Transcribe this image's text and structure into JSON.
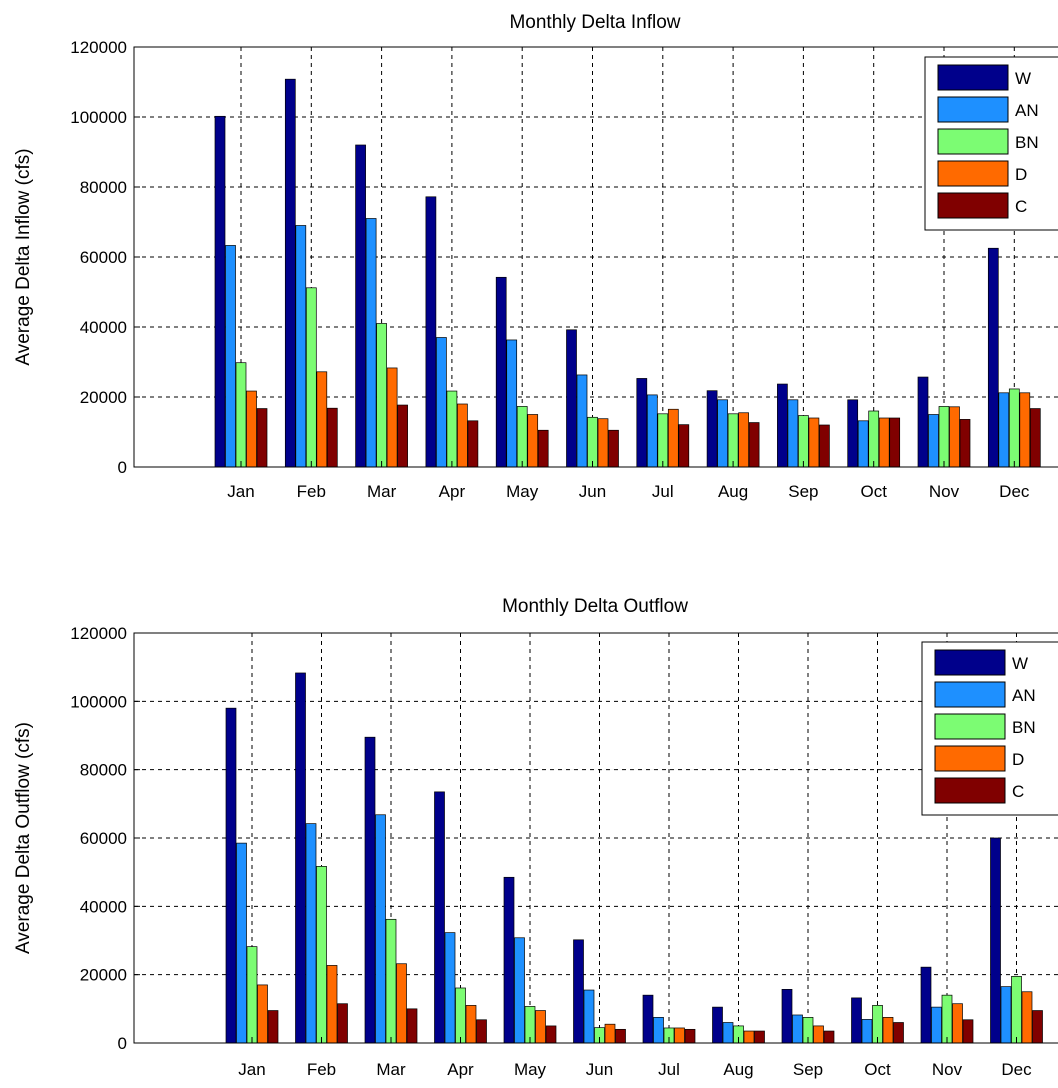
{
  "chart_data": [
    {
      "type": "bar",
      "title": "Monthly Delta Inflow",
      "xlabel": "",
      "ylabel": "Average Delta Inflow (cfs)",
      "ylim": [
        0,
        120000
      ],
      "yticks": [
        0,
        20000,
        40000,
        60000,
        80000,
        100000,
        120000
      ],
      "ytick_labels": [
        "0",
        "20000",
        "40000",
        "60000",
        "80000",
        "100000",
        "120000"
      ],
      "grid": true,
      "legend_position": "top-right",
      "categories": [
        "Jan",
        "Feb",
        "Mar",
        "Apr",
        "May",
        "Jun",
        "Jul",
        "Aug",
        "Sep",
        "Oct",
        "Nov",
        "Dec"
      ],
      "series": [
        {
          "name": "W",
          "color": "#00008B",
          "values": [
            100200,
            110800,
            92000,
            77200,
            54200,
            39200,
            25300,
            21800,
            23700,
            19200,
            25700,
            62500
          ]
        },
        {
          "name": "AN",
          "color": "#1E90FF",
          "values": [
            63300,
            69000,
            71000,
            37000,
            36300,
            26300,
            20600,
            19200,
            19200,
            13200,
            15000,
            21200
          ]
        },
        {
          "name": "BN",
          "color": "#7CFC73",
          "values": [
            29800,
            51200,
            41000,
            21700,
            17300,
            14200,
            15200,
            15200,
            14700,
            16000,
            17300,
            22300
          ]
        },
        {
          "name": "D",
          "color": "#FF6A00",
          "values": [
            21700,
            27200,
            28300,
            18000,
            15000,
            13800,
            16500,
            15500,
            14000,
            14000,
            17200,
            21200
          ]
        },
        {
          "name": "C",
          "color": "#800000",
          "values": [
            16700,
            16800,
            17700,
            13200,
            10500,
            10500,
            12100,
            12700,
            12000,
            14000,
            13600,
            16700
          ]
        }
      ]
    },
    {
      "type": "bar",
      "title": "Monthly Delta Outflow",
      "xlabel": "",
      "ylabel": "Average Delta Outflow (cfs)",
      "ylim": [
        0,
        120000
      ],
      "yticks": [
        0,
        20000,
        40000,
        60000,
        80000,
        100000,
        120000
      ],
      "ytick_labels": [
        "0",
        "20000",
        "40000",
        "60000",
        "80000",
        "100000",
        "120000"
      ],
      "grid": true,
      "legend_position": "top-right",
      "categories": [
        "Jan",
        "Feb",
        "Mar",
        "Apr",
        "May",
        "Jun",
        "Jul",
        "Aug",
        "Sep",
        "Oct",
        "Nov",
        "Dec"
      ],
      "series": [
        {
          "name": "W",
          "color": "#00008B",
          "values": [
            98000,
            108300,
            89500,
            73500,
            48500,
            30200,
            14000,
            10500,
            15700,
            13200,
            22200,
            60000
          ]
        },
        {
          "name": "AN",
          "color": "#1E90FF",
          "values": [
            58500,
            64200,
            66800,
            32300,
            30800,
            15500,
            7500,
            6000,
            8200,
            6900,
            10500,
            16500
          ]
        },
        {
          "name": "BN",
          "color": "#7CFC73",
          "values": [
            28200,
            51700,
            36200,
            16100,
            10700,
            4500,
            4400,
            5000,
            7500,
            11000,
            14000,
            19500
          ]
        },
        {
          "name": "D",
          "color": "#FF6A00",
          "values": [
            17000,
            22700,
            23200,
            11000,
            9500,
            5500,
            4400,
            3500,
            5000,
            7500,
            11500,
            15000
          ]
        },
        {
          "name": "C",
          "color": "#800000",
          "values": [
            9500,
            11500,
            10000,
            6800,
            5000,
            4000,
            4000,
            3500,
            3500,
            6000,
            6800,
            9500
          ]
        }
      ]
    }
  ]
}
